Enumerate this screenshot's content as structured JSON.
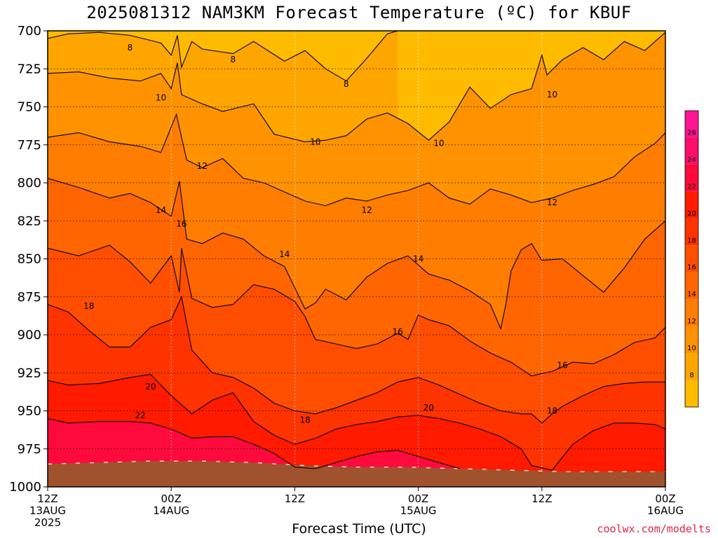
{
  "title": "2025081312 NAM3KM Forecast Temperature (ºC) for KBUF",
  "credit": "coolwx.com/modelts",
  "chart_data": {
    "type": "heatmap",
    "title": "2025081312 NAM3KM Forecast Temperature (ºC) for KBUF",
    "xlabel": "Forecast Time (UTC)",
    "ylabel": "",
    "y_axis": {
      "range": [
        700,
        1000
      ],
      "inverted": true,
      "ticks": [
        700,
        725,
        750,
        775,
        800,
        825,
        850,
        875,
        900,
        925,
        950,
        975,
        1000
      ]
    },
    "x_axis": {
      "range_hours": [
        0,
        60
      ],
      "ticks": [
        {
          "hour": 0,
          "lines": [
            "12Z",
            "13AUG",
            "2025"
          ]
        },
        {
          "hour": 12,
          "lines": [
            "00Z",
            "14AUG"
          ]
        },
        {
          "hour": 24,
          "lines": [
            "12Z"
          ]
        },
        {
          "hour": 36,
          "lines": [
            "00Z",
            "15AUG"
          ]
        },
        {
          "hour": 48,
          "lines": [
            "12Z"
          ]
        },
        {
          "hour": 60,
          "lines": [
            "00Z",
            "16AUG"
          ]
        }
      ]
    },
    "grid": true,
    "colorbar": {
      "labels": [
        8,
        10,
        12,
        14,
        16,
        18,
        20,
        22,
        24,
        26
      ],
      "levels": [
        6,
        8,
        10,
        12,
        14,
        16,
        18,
        20,
        22,
        24,
        26,
        28
      ],
      "colors": [
        "#ffbb00",
        "#ffa500",
        "#ff9200",
        "#ff7d00",
        "#ff6500",
        "#ff4e00",
        "#ff3300",
        "#ff1a00",
        "#ff0a3c",
        "#ff0d6a",
        "#ff1494"
      ]
    },
    "surface_color": "#a0522d",
    "contours": [
      {
        "level": 8,
        "points": [
          [
            0,
            705
          ],
          [
            2,
            702
          ],
          [
            5,
            701
          ],
          [
            8,
            703
          ],
          [
            11,
            708
          ],
          [
            12,
            716
          ],
          [
            12.6,
            703
          ],
          [
            13,
            724
          ],
          [
            14,
            707
          ],
          [
            15,
            712
          ],
          [
            18,
            715
          ],
          [
            20,
            707
          ],
          [
            23,
            720
          ],
          [
            25,
            713
          ],
          [
            27,
            725
          ],
          [
            29,
            733
          ],
          [
            31,
            718
          ],
          [
            33,
            702
          ],
          [
            34,
            700
          ]
        ]
      },
      {
        "level": 10,
        "points": [
          [
            0,
            728
          ],
          [
            3,
            727
          ],
          [
            6,
            731
          ],
          [
            9,
            733
          ],
          [
            11,
            728
          ],
          [
            12,
            738
          ],
          [
            12.6,
            721
          ],
          [
            13,
            742
          ],
          [
            15,
            748
          ],
          [
            17,
            753
          ],
          [
            20,
            748
          ],
          [
            22,
            768
          ],
          [
            25,
            773
          ],
          [
            27,
            772
          ],
          [
            29,
            769
          ],
          [
            31,
            758
          ],
          [
            33,
            754
          ],
          [
            35,
            761
          ],
          [
            37,
            772
          ],
          [
            39,
            760
          ],
          [
            41,
            737
          ],
          [
            43,
            751
          ],
          [
            45,
            742
          ],
          [
            47,
            738
          ],
          [
            48,
            716
          ],
          [
            48.5,
            729
          ],
          [
            50,
            719
          ],
          [
            52,
            711
          ],
          [
            54,
            719
          ],
          [
            56,
            707
          ],
          [
            58,
            713
          ],
          [
            60,
            701
          ]
        ]
      },
      {
        "level": 12,
        "points": [
          [
            0,
            770
          ],
          [
            3,
            767
          ],
          [
            6,
            773
          ],
          [
            9,
            776
          ],
          [
            11,
            780
          ],
          [
            12.5,
            755
          ],
          [
            13.5,
            785
          ],
          [
            15,
            790
          ],
          [
            17,
            784
          ],
          [
            19,
            797
          ],
          [
            21,
            800
          ],
          [
            23,
            806
          ],
          [
            25,
            812
          ],
          [
            27,
            815
          ],
          [
            29,
            810
          ],
          [
            31,
            812
          ],
          [
            33,
            808
          ],
          [
            35,
            805
          ],
          [
            37,
            800
          ],
          [
            39,
            810
          ],
          [
            41,
            814
          ],
          [
            43,
            804
          ],
          [
            45,
            808
          ],
          [
            47,
            813
          ],
          [
            49,
            810
          ],
          [
            51,
            805
          ],
          [
            53,
            801
          ],
          [
            55,
            796
          ],
          [
            57,
            783
          ],
          [
            59,
            774
          ],
          [
            60,
            767
          ]
        ]
      },
      {
        "level": 14,
        "points": [
          [
            0,
            797
          ],
          [
            3,
            803
          ],
          [
            6,
            810
          ],
          [
            8,
            807
          ],
          [
            10,
            813
          ],
          [
            12,
            822
          ],
          [
            12.8,
            799
          ],
          [
            13.5,
            837
          ],
          [
            15,
            840
          ],
          [
            17,
            833
          ],
          [
            19,
            837
          ],
          [
            21,
            848
          ],
          [
            23,
            855
          ],
          [
            24,
            869
          ],
          [
            25,
            883
          ],
          [
            26,
            879
          ],
          [
            27,
            870
          ],
          [
            29,
            877
          ],
          [
            31,
            862
          ],
          [
            33,
            853
          ],
          [
            35,
            848
          ],
          [
            37,
            860
          ],
          [
            39,
            864
          ],
          [
            41,
            871
          ],
          [
            43,
            880
          ],
          [
            44,
            896
          ],
          [
            44.5,
            880
          ],
          [
            45,
            858
          ],
          [
            46,
            844
          ],
          [
            47,
            840
          ],
          [
            48,
            851
          ],
          [
            50,
            850
          ],
          [
            52,
            861
          ],
          [
            54,
            872
          ],
          [
            56,
            856
          ],
          [
            58,
            837
          ],
          [
            60,
            825
          ]
        ]
      },
      {
        "level": 16,
        "points": [
          [
            0,
            843
          ],
          [
            3,
            848
          ],
          [
            6,
            841
          ],
          [
            8,
            852
          ],
          [
            10,
            866
          ],
          [
            12,
            848
          ],
          [
            12.8,
            872
          ],
          [
            13,
            843
          ],
          [
            14,
            876
          ],
          [
            16,
            882
          ],
          [
            18,
            880
          ],
          [
            20,
            867
          ],
          [
            22,
            870
          ],
          [
            24,
            878
          ],
          [
            25,
            888
          ],
          [
            26,
            903
          ],
          [
            28,
            906
          ],
          [
            30,
            909
          ],
          [
            32,
            906
          ],
          [
            34,
            899
          ],
          [
            35,
            903
          ],
          [
            36,
            887
          ],
          [
            37,
            890
          ],
          [
            39,
            894
          ],
          [
            41,
            904
          ],
          [
            43,
            912
          ],
          [
            45,
            918
          ],
          [
            47,
            927
          ],
          [
            49,
            924
          ],
          [
            51,
            918
          ],
          [
            53,
            919
          ],
          [
            55,
            913
          ],
          [
            57,
            905
          ],
          [
            59,
            902
          ],
          [
            60,
            895
          ]
        ]
      },
      {
        "level": 18,
        "points": [
          [
            0,
            880
          ],
          [
            2,
            885
          ],
          [
            4,
            897
          ],
          [
            6,
            908
          ],
          [
            8,
            908
          ],
          [
            10,
            895
          ],
          [
            12,
            890
          ],
          [
            13,
            875
          ],
          [
            14,
            910
          ],
          [
            16,
            925
          ],
          [
            18,
            928
          ],
          [
            20,
            935
          ],
          [
            22,
            945
          ],
          [
            24,
            950
          ],
          [
            26,
            952
          ],
          [
            28,
            948
          ],
          [
            30,
            943
          ],
          [
            32,
            938
          ],
          [
            34,
            931
          ],
          [
            36,
            928
          ],
          [
            38,
            933
          ],
          [
            40,
            939
          ],
          [
            42,
            945
          ],
          [
            44,
            950
          ],
          [
            46,
            952
          ],
          [
            47,
            952
          ],
          [
            48,
            958
          ],
          [
            49,
            952
          ],
          [
            50,
            947
          ],
          [
            52,
            940
          ],
          [
            54,
            934
          ],
          [
            56,
            932
          ],
          [
            58,
            931
          ],
          [
            60,
            931
          ]
        ]
      },
      {
        "level": 20,
        "points": [
          [
            0,
            930
          ],
          [
            2,
            933
          ],
          [
            5,
            932
          ],
          [
            8,
            928
          ],
          [
            10,
            926
          ],
          [
            12,
            940
          ],
          [
            14,
            952
          ],
          [
            16,
            943
          ],
          [
            18,
            938
          ],
          [
            20,
            957
          ],
          [
            22,
            966
          ],
          [
            24,
            972
          ],
          [
            26,
            968
          ],
          [
            28,
            962
          ],
          [
            30,
            959
          ],
          [
            32,
            957
          ],
          [
            34,
            954
          ],
          [
            36,
            953
          ],
          [
            38,
            955
          ],
          [
            40,
            958
          ],
          [
            42,
            962
          ],
          [
            44,
            967
          ],
          [
            46,
            975
          ],
          [
            47,
            986
          ],
          [
            49,
            989
          ],
          [
            51,
            972
          ],
          [
            53,
            963
          ],
          [
            55,
            958
          ],
          [
            57,
            958
          ],
          [
            59,
            959
          ],
          [
            60,
            962
          ]
        ]
      },
      {
        "level": 22,
        "points": [
          [
            0,
            955
          ],
          [
            2,
            958
          ],
          [
            5,
            957
          ],
          [
            8,
            957
          ],
          [
            10,
            958
          ],
          [
            12,
            962
          ],
          [
            14,
            968
          ],
          [
            16,
            967
          ],
          [
            18,
            967
          ],
          [
            20,
            972
          ],
          [
            22,
            978
          ],
          [
            24,
            987
          ],
          [
            26,
            988
          ],
          [
            28,
            984
          ],
          [
            30,
            980
          ],
          [
            32,
            977
          ],
          [
            34,
            976
          ],
          [
            36,
            980
          ],
          [
            38,
            984
          ],
          [
            40,
            988
          ]
        ]
      }
    ],
    "contour_labels": [
      {
        "text": "8",
        "hour": 8,
        "hpa": 711
      },
      {
        "text": "8",
        "hour": 18,
        "hpa": 719
      },
      {
        "text": "8",
        "hour": 29,
        "hpa": 735
      },
      {
        "text": "10",
        "hour": 11,
        "hpa": 744
      },
      {
        "text": "10",
        "hour": 26,
        "hpa": 773
      },
      {
        "text": "10",
        "hour": 38,
        "hpa": 774
      },
      {
        "text": "10",
        "hour": 49,
        "hpa": 742
      },
      {
        "text": "12",
        "hour": 15,
        "hpa": 789
      },
      {
        "text": "12",
        "hour": 31,
        "hpa": 818
      },
      {
        "text": "12",
        "hour": 49,
        "hpa": 813
      },
      {
        "text": "14",
        "hour": 11,
        "hpa": 818
      },
      {
        "text": "14",
        "hour": 23,
        "hpa": 847
      },
      {
        "text": "14",
        "hour": 36,
        "hpa": 850
      },
      {
        "text": "16",
        "hour": 13,
        "hpa": 827
      },
      {
        "text": "16",
        "hour": 34,
        "hpa": 898
      },
      {
        "text": "16",
        "hour": 50,
        "hpa": 920
      },
      {
        "text": "18",
        "hour": 4,
        "hpa": 881
      },
      {
        "text": "18",
        "hour": 25,
        "hpa": 956
      },
      {
        "text": "18",
        "hour": 49,
        "hpa": 950
      },
      {
        "text": "20",
        "hour": 10,
        "hpa": 934
      },
      {
        "text": "20",
        "hour": 37,
        "hpa": 948
      },
      {
        "text": "22",
        "hour": 9,
        "hpa": 953
      }
    ],
    "surface_pressure": [
      [
        0,
        985
      ],
      [
        5,
        984
      ],
      [
        10,
        983
      ],
      [
        15,
        983
      ],
      [
        20,
        984
      ],
      [
        25,
        986
      ],
      [
        30,
        987
      ],
      [
        35,
        987
      ],
      [
        40,
        988
      ],
      [
        45,
        989
      ],
      [
        50,
        990
      ],
      [
        55,
        990
      ],
      [
        60,
        990
      ]
    ]
  }
}
